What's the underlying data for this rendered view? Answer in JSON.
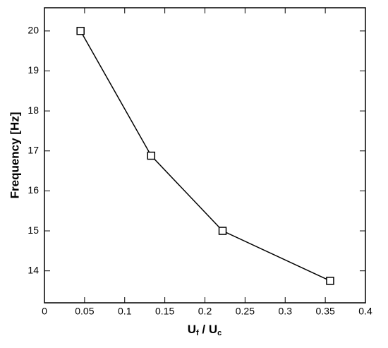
{
  "chart_data": {
    "type": "line",
    "x_label_parts": [
      "U",
      "f",
      " / U",
      "c"
    ],
    "y_label": "Frequency [Hz]",
    "x": [
      0.045,
      0.133,
      0.222,
      0.356
    ],
    "series": [
      {
        "color": "#000000",
        "values": [
          20,
          16.88,
          15,
          13.75
        ]
      }
    ],
    "marker": "square",
    "xlim": [
      0,
      0.4
    ],
    "xticks": [
      0,
      0.05,
      0.1,
      0.15,
      0.2,
      0.25,
      0.3,
      0.35,
      0.4
    ],
    "ylim": [
      13.2,
      20.58
    ],
    "yticks": [
      14,
      15,
      16,
      17,
      18,
      19,
      20
    ],
    "grid": false
  }
}
